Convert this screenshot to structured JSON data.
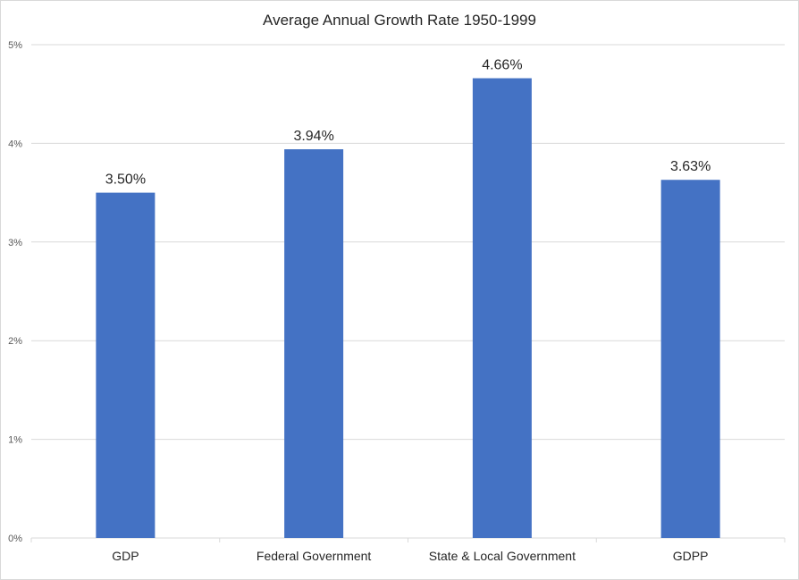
{
  "chart_data": {
    "type": "bar",
    "title": "Average Annual Growth Rate 1950-1999",
    "categories": [
      "GDP",
      "Federal Government",
      "State & Local Government",
      "GDPP"
    ],
    "values": [
      3.5,
      3.94,
      4.66,
      3.63
    ],
    "data_labels": [
      "3.50%",
      "3.94%",
      "4.66%",
      "3.63%"
    ],
    "y_ticks": [
      "0%",
      "1%",
      "2%",
      "3%",
      "4%",
      "5%"
    ],
    "ylim": [
      0,
      5
    ],
    "xlabel": "",
    "ylabel": "",
    "grid": true,
    "legend": "none",
    "bar_color": "#4472C4",
    "grid_color": "#d9d9d9"
  }
}
